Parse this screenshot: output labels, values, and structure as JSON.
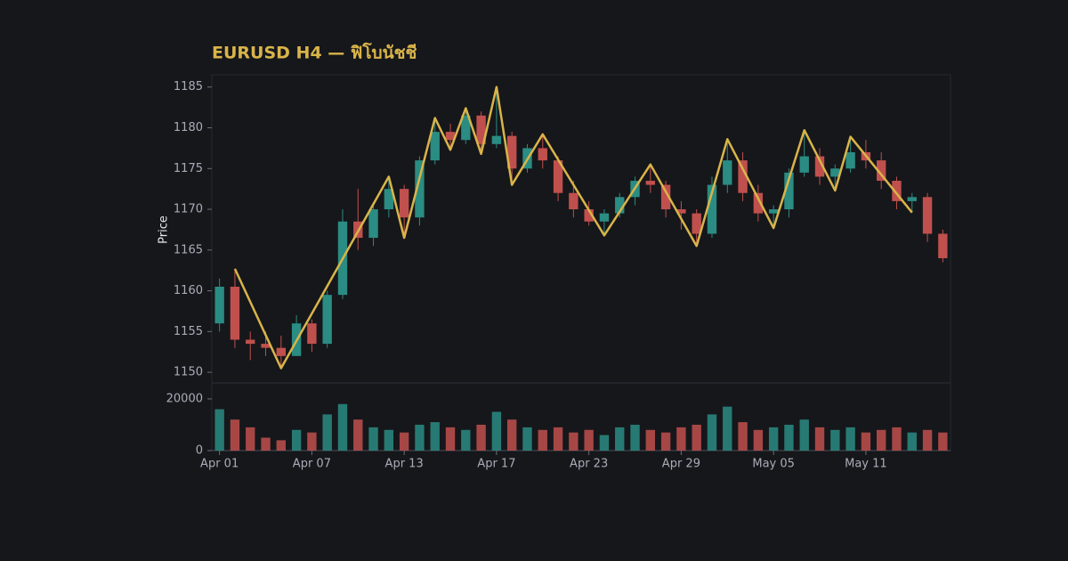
{
  "chart_data": {
    "type": "candlestick",
    "title": "EURUSD H4 — ฟิโบนัชชี",
    "y_label": "Price",
    "categories": [
      "Apr 01",
      null,
      null,
      null,
      null,
      null,
      "Apr 07",
      null,
      null,
      null,
      null,
      null,
      "Apr 13",
      null,
      null,
      null,
      null,
      null,
      "Apr 17",
      null,
      null,
      null,
      null,
      null,
      "Apr 23",
      null,
      null,
      null,
      null,
      null,
      "Apr 29",
      null,
      null,
      null,
      null,
      null,
      "May 05",
      null,
      null,
      null,
      null,
      null,
      "May 11",
      null,
      null,
      null,
      null,
      null
    ],
    "open": [
      1156,
      1160.5,
      1154,
      1153.5,
      1153,
      1152,
      1156,
      1153.5,
      1159.5,
      1168.5,
      1166.5,
      1170,
      1172.5,
      1169,
      1176,
      1179.5,
      1178.5,
      1181.5,
      1178,
      1179,
      1175,
      1177.5,
      1176,
      1172,
      1170,
      1168.5,
      1169.5,
      1171.5,
      1173.5,
      1173,
      1170,
      1169.5,
      1167,
      1173,
      1176,
      1172,
      1169.5,
      1170,
      1174.5,
      1176.5,
      1174,
      1175,
      1177,
      1176,
      1173.5,
      1171,
      1171.5,
      1167
    ],
    "high": [
      1161.5,
      1162.7,
      1155,
      1155,
      1154.5,
      1157,
      1156.5,
      1160,
      1170,
      1172.5,
      1170.5,
      1174,
      1173,
      1176.5,
      1181.2,
      1180.5,
      1182.4,
      1182,
      1185,
      1179.5,
      1178,
      1179.2,
      1176.5,
      1173.5,
      1171,
      1170,
      1172,
      1174,
      1175.5,
      1173.5,
      1171,
      1170,
      1174,
      1178.6,
      1177,
      1173,
      1170.5,
      1175,
      1179.7,
      1177.5,
      1175.5,
      1178.9,
      1178.5,
      1177,
      1174,
      1172,
      1172,
      1167.5
    ],
    "low": [
      1155,
      1153,
      1151.5,
      1152,
      1150.5,
      1152,
      1152.5,
      1153,
      1159,
      1165,
      1165.5,
      1169,
      1166.5,
      1168,
      1175.5,
      1177.3,
      1178,
      1176.8,
      1177.5,
      1173,
      1174.5,
      1175,
      1171,
      1169,
      1168,
      1166.8,
      1169,
      1170.5,
      1172,
      1169,
      1167.5,
      1165.5,
      1166.5,
      1172,
      1171,
      1168.5,
      1167.7,
      1169,
      1174,
      1173,
      1172.3,
      1174.5,
      1175,
      1172.5,
      1170,
      1169.6,
      1166,
      1163.5
    ],
    "close": [
      1160.5,
      1154,
      1153.5,
      1153,
      1152,
      1156,
      1153.5,
      1159.5,
      1168.5,
      1166.5,
      1170,
      1172.5,
      1169,
      1176,
      1179.5,
      1178.5,
      1181.5,
      1178,
      1179,
      1175,
      1177.5,
      1176,
      1172,
      1170,
      1168.5,
      1169.5,
      1171.5,
      1173.5,
      1173,
      1170,
      1169.5,
      1167,
      1173,
      1176,
      1172,
      1169.5,
      1170,
      1174.5,
      1176.5,
      1174,
      1175,
      1177,
      1176,
      1173.5,
      1171,
      1171.5,
      1167,
      1164
    ],
    "up_color": "#2a8c82",
    "down_color": "#c0504d",
    "ylim": [
      1148.7,
      1186.5
    ],
    "yticks": [
      1150,
      1155,
      1160,
      1165,
      1170,
      1175,
      1180,
      1185
    ],
    "volume": {
      "values": [
        16000,
        12000,
        9000,
        5000,
        4000,
        8000,
        7000,
        14000,
        18000,
        12000,
        9000,
        8000,
        7000,
        10000,
        11000,
        9000,
        8000,
        10000,
        15000,
        12000,
        9000,
        8000,
        9000,
        7000,
        8000,
        6000,
        9000,
        10000,
        8000,
        7000,
        9000,
        10000,
        14000,
        17000,
        11000,
        8000,
        9000,
        10000,
        12000,
        9000,
        8000,
        9000,
        7000,
        8000,
        9000,
        7000,
        8000,
        7000
      ],
      "ylim": [
        0,
        25500
      ],
      "yticks": [
        0,
        20000
      ]
    },
    "zigzag": {
      "color": "#d9b44a",
      "x": [
        1,
        4,
        11,
        12,
        14,
        15,
        16,
        17,
        18,
        19,
        21,
        25,
        28,
        31,
        33,
        36,
        38,
        40,
        41,
        45
      ],
      "values": [
        1162.7,
        1150.5,
        1174,
        1166.5,
        1181.2,
        1177.3,
        1182.4,
        1176.8,
        1185,
        1173,
        1179.2,
        1166.8,
        1175.5,
        1165.5,
        1178.6,
        1167.7,
        1179.7,
        1172.3,
        1178.9,
        1169.6
      ]
    }
  }
}
